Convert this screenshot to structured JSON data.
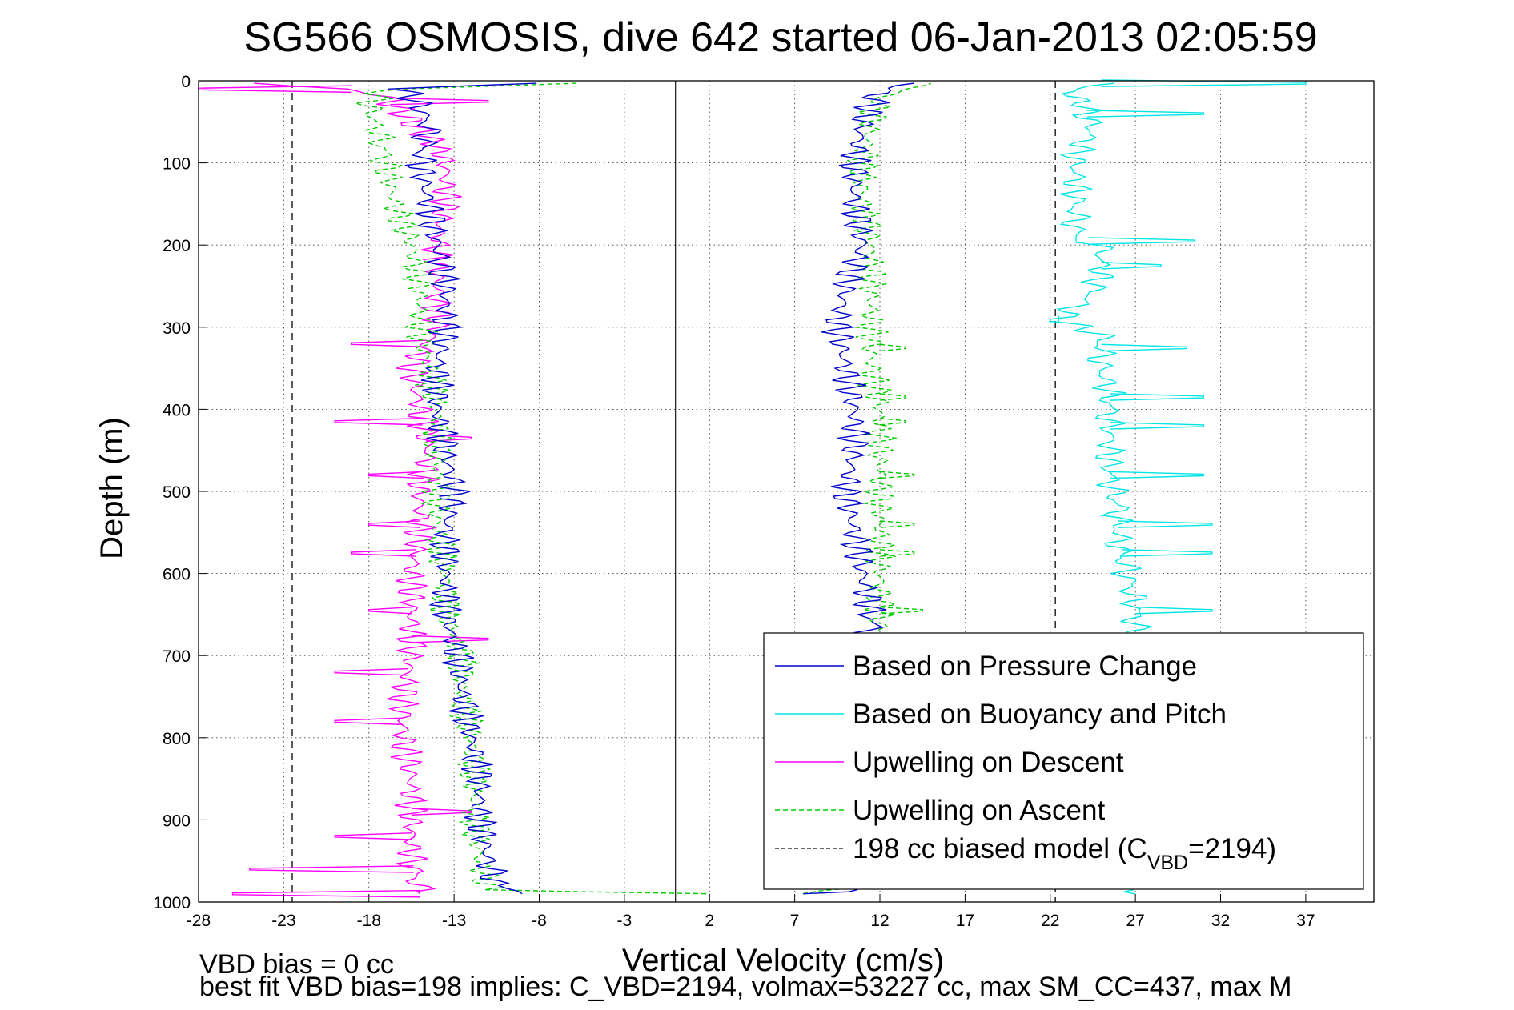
{
  "chart_data": {
    "type": "line",
    "title": "SG566 OSMOSIS, dive 642 started 06-Jan-2013 02:05:59",
    "xlabel": "Vertical Velocity (cm/s)",
    "ylabel": "Depth (m)",
    "xlim": [
      -28,
      41
    ],
    "ylim": [
      1000,
      0
    ],
    "y_reversed": true,
    "grid": true,
    "legend_position": "bottom-right",
    "xticks": [
      "-28",
      "-23",
      "-18",
      "-13",
      "-8",
      "-3",
      "2",
      "7",
      "12",
      "17",
      "22",
      "27",
      "32",
      "37"
    ],
    "xtick_values": [
      -28,
      -23,
      -18,
      -13,
      -8,
      -3,
      2,
      7,
      12,
      17,
      22,
      27,
      32,
      37
    ],
    "yticks": [
      "0",
      "100",
      "200",
      "300",
      "400",
      "500",
      "600",
      "700",
      "800",
      "900",
      "1000"
    ],
    "ytick_values": [
      0,
      100,
      200,
      300,
      400,
      500,
      600,
      700,
      800,
      900,
      1000
    ],
    "zero_line_x": 0,
    "series": [
      {
        "name": "Based on Pressure Change",
        "color": "#0000cc",
        "style": "solid",
        "segments": [
          {
            "depth": [
              3,
              10,
              30,
              60,
              100,
              150,
              200,
              250,
              300,
              350,
              400,
              450,
              500,
              550,
              600,
              650,
              700,
              750,
              800,
              850,
              900,
              950,
              980,
              990
            ],
            "v": [
              -8,
              -16,
              -15,
              -14.5,
              -15,
              -14.5,
              -14,
              -13.5,
              -13.5,
              -14,
              -14,
              -13.5,
              -13,
              -13.5,
              -13.5,
              -13.5,
              -12.8,
              -12.5,
              -12,
              -11.5,
              -11.5,
              -11,
              -10.5,
              -9
            ]
          },
          {
            "depth": [
              990,
              985,
              950,
              900,
              850,
              800,
              750,
              700,
              675,
              650,
              600,
              550,
              500,
              450,
              400,
              350,
              300,
              250,
              200,
              150,
              100,
              50,
              12,
              3
            ],
            "v": [
              8,
              10.5,
              11,
              11,
              11,
              11,
              11,
              11,
              11.5,
              11.5,
              11,
              10.5,
              10,
              10.5,
              10.5,
              10,
              9.5,
              10,
              11,
              10.5,
              10.5,
              11,
              12,
              14
            ]
          }
        ]
      },
      {
        "name": "Based on Buoyancy and Pitch",
        "color": "#00e5e5",
        "style": "solid",
        "segments": [
          {
            "depth": [
              3,
              10,
              30,
              60,
              90,
              120,
              150,
              190,
              200,
              230,
              260,
              290,
              310,
              350,
              380,
              420,
              450,
              480,
              520,
              560,
              600,
              640,
              680
            ],
            "v": [
              25,
              23,
              24,
              24.5,
              23.5,
              23.5,
              23.5,
              23.5,
              25,
              25,
              24.5,
              22.5,
              25,
              25,
              25.5,
              25.5,
              25.5,
              25.5,
              26,
              26,
              26.5,
              27,
              27
            ]
          },
          {
            "depth": [
              985,
              990
            ],
            "v": [
              26.5,
              27
            ]
          }
        ],
        "spikes": [
          {
            "depth": 3,
            "v": 37
          },
          {
            "depth": 40,
            "v": 31
          },
          {
            "depth": 195,
            "v": 30.5
          },
          {
            "depth": 225,
            "v": 28.5
          },
          {
            "depth": 290,
            "v": 22.5
          },
          {
            "depth": 325,
            "v": 30
          },
          {
            "depth": 385,
            "v": 31
          },
          {
            "depth": 420,
            "v": 31
          },
          {
            "depth": 480,
            "v": 31
          },
          {
            "depth": 540,
            "v": 31.5
          },
          {
            "depth": 575,
            "v": 31.5
          },
          {
            "depth": 645,
            "v": 31.5
          }
        ]
      },
      {
        "name": "Upwelling on Descent",
        "color": "#ff00ff",
        "style": "solid",
        "segments": [
          {
            "depth": [
              3,
              10,
              20,
              40,
              60,
              80,
              100,
              150,
              200,
              250,
              300,
              350,
              400,
              450,
              500,
              550,
              600,
              650,
              700,
              750,
              800,
              850,
              900,
              950,
              990
            ],
            "v": [
              -24,
              -19,
              -17,
              -16,
              -15,
              -14,
              -13.5,
              -13.5,
              -14,
              -14,
              -14,
              -15.5,
              -15,
              -14.5,
              -15,
              -15,
              -15.5,
              -15.5,
              -15.5,
              -16,
              -16,
              -15.5,
              -15.5,
              -15.5,
              -15
            ]
          }
        ],
        "spikes": [
          {
            "depth": 10,
            "v": -28
          },
          {
            "depth": 25,
            "v": -11
          },
          {
            "depth": 320,
            "v": -19
          },
          {
            "depth": 415,
            "v": -20
          },
          {
            "depth": 435,
            "v": -12
          },
          {
            "depth": 480,
            "v": -18
          },
          {
            "depth": 540,
            "v": -18
          },
          {
            "depth": 575,
            "v": -19
          },
          {
            "depth": 645,
            "v": -18
          },
          {
            "depth": 680,
            "v": -11
          },
          {
            "depth": 720,
            "v": -20
          },
          {
            "depth": 780,
            "v": -20
          },
          {
            "depth": 890,
            "v": -12
          },
          {
            "depth": 920,
            "v": -20
          },
          {
            "depth": 960,
            "v": -25
          },
          {
            "depth": 990,
            "v": -26
          }
        ]
      },
      {
        "name": "Upwelling on Ascent",
        "color": "#00cc00",
        "style": "dashed",
        "segments": [
          {
            "depth": [
              3,
              10,
              30,
              60,
              100,
              150,
              200,
              250,
              300,
              350,
              400,
              450,
              500,
              550,
              600,
              650,
              700,
              750,
              800,
              850,
              900,
              950,
              985,
              990
            ],
            "v": [
              -6,
              -17,
              -18,
              -17.5,
              -17,
              -16.5,
              -15.5,
              -15,
              -15,
              -14.5,
              -14,
              -14,
              -14,
              -14,
              -13.5,
              -13.5,
              -12.5,
              -12.5,
              -12,
              -11.8,
              -11.8,
              -11.5,
              -11,
              2
            ]
          },
          {
            "depth": [
              990,
              980,
              950,
              900,
              850,
              800,
              750,
              700,
              650,
              600,
              550,
              500,
              450,
              400,
              350,
              300,
              250,
              200,
              150,
              100,
              50,
              20,
              3
            ],
            "v": [
              7,
              11.5,
              12,
              12,
              12,
              12,
              12,
              12,
              12,
              12,
              12,
              12,
              12,
              12,
              11.5,
              11.5,
              11.5,
              11.5,
              11,
              11,
              11.5,
              12,
              15
            ]
          }
        ],
        "spikes": [
          {
            "depth": 325,
            "v": 13.5
          },
          {
            "depth": 385,
            "v": 13.5
          },
          {
            "depth": 415,
            "v": 13.5
          },
          {
            "depth": 480,
            "v": 14
          },
          {
            "depth": 540,
            "v": 14
          },
          {
            "depth": 575,
            "v": 14
          },
          {
            "depth": 645,
            "v": 14.5
          }
        ]
      },
      {
        "name": "198 cc biased model (C_VBD=2194)",
        "label_main": "198 cc biased model (C",
        "label_sub": "VBD",
        "label_tail": "=2194)",
        "color": "#333333",
        "style": "dashed",
        "segments": [
          {
            "depth": [
              0,
              1000
            ],
            "v": [
              -22.5,
              -22.5
            ]
          },
          {
            "depth": [
              0,
              1000
            ],
            "v": [
              22.3,
              22.3
            ]
          }
        ]
      }
    ],
    "footer": {
      "line1": "VBD bias = 0 cc",
      "line2": "best fit VBD bias=198 implies: C_VBD=2194, volmax=53227 cc, max SM_CC=437, max M"
    }
  }
}
